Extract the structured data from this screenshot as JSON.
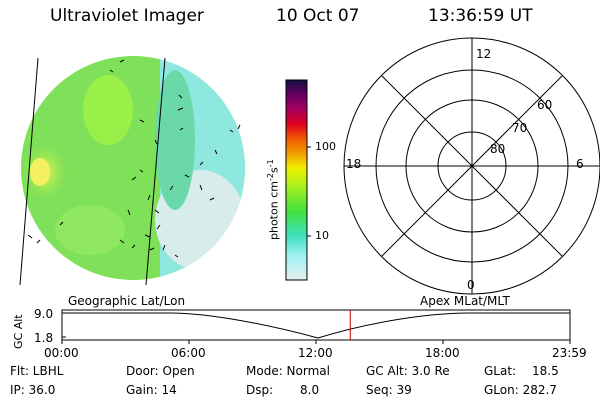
{
  "header": {
    "title": "Ultraviolet Imager",
    "date": "10 Oct 07",
    "time": "13:36:59 UT"
  },
  "colorbar": {
    "unit_prefix": "photon cm",
    "unit_exp1": "-2",
    "unit_mid": "s",
    "unit_exp2": "-1",
    "ticks": [
      "100",
      "10"
    ]
  },
  "polar_plot": {
    "mlt_labels": [
      "12",
      "18",
      "6",
      "0"
    ],
    "lat_labels": [
      "60",
      "70",
      "80"
    ]
  },
  "timeline": {
    "left_label": "Geographic Lat/Lon",
    "right_label": "Apex MLat/MLT",
    "y_axis_label": "GC Alt",
    "y_ticks": [
      "9.0",
      "1.8"
    ],
    "x_ticks": [
      "00:00",
      "06:00",
      "12:00",
      "18:00",
      "23:59"
    ],
    "current_time_fraction": 0.5674
  },
  "status": {
    "row1": [
      {
        "label": "Flt: LBHL"
      },
      {
        "label": "Door: Open"
      },
      {
        "label": "Mode: Normal"
      },
      {
        "label": "GC Alt: 3.0 Re"
      },
      {
        "label": "GLat:",
        "value": "18.5"
      }
    ],
    "row2": [
      {
        "label": "IP: 36.0"
      },
      {
        "label": "Gain: 14"
      },
      {
        "label": "Dsp:",
        "value": "8.0"
      },
      {
        "label": "Seq: 39"
      },
      {
        "label": "GLon: 282.7"
      }
    ]
  },
  "colors": {
    "timeline_marker": "#c00000",
    "image_green": "#7fe05a",
    "image_cyan": "#7fe8e0"
  }
}
